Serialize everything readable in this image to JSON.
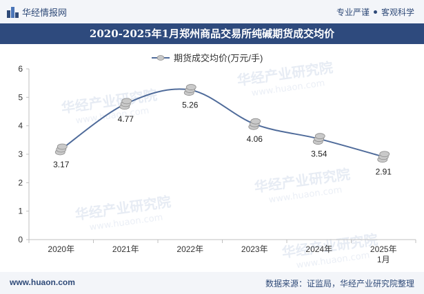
{
  "header": {
    "brand": "华经情报网",
    "tagline_1": "专业严谨",
    "tagline_2": "客观科学"
  },
  "footer": {
    "url": "www.huaon.com",
    "source": "数据来源：证监局，华经产业研究院整理"
  },
  "watermark": {
    "text_cn": "华经产业研究院",
    "text_en": "www.huaon.com"
  },
  "colors": {
    "header_band": "#2e4a7d",
    "line": "#4f6b9a",
    "marker": "#c9c9c9"
  },
  "chart_data": {
    "type": "line",
    "title": "2020-2025年1月郑州商品交易所纯碱期货成交均价",
    "categories": [
      "2020年",
      "2021年",
      "2022年",
      "2023年",
      "2024年",
      "2025年\n1月"
    ],
    "series": [
      {
        "name": "期货成交均价(万元/手)",
        "values": [
          3.17,
          4.77,
          5.26,
          4.06,
          3.54,
          2.91
        ]
      }
    ],
    "ylim": [
      0,
      6
    ],
    "yticks": [
      "0",
      "1",
      "2",
      "3",
      "4",
      "5",
      "6"
    ],
    "data_labels": [
      "3.17",
      "4.77",
      "5.26",
      "4.06",
      "3.54",
      "2.91"
    ],
    "legend": "top-center",
    "grid": false,
    "smooth": true
  }
}
